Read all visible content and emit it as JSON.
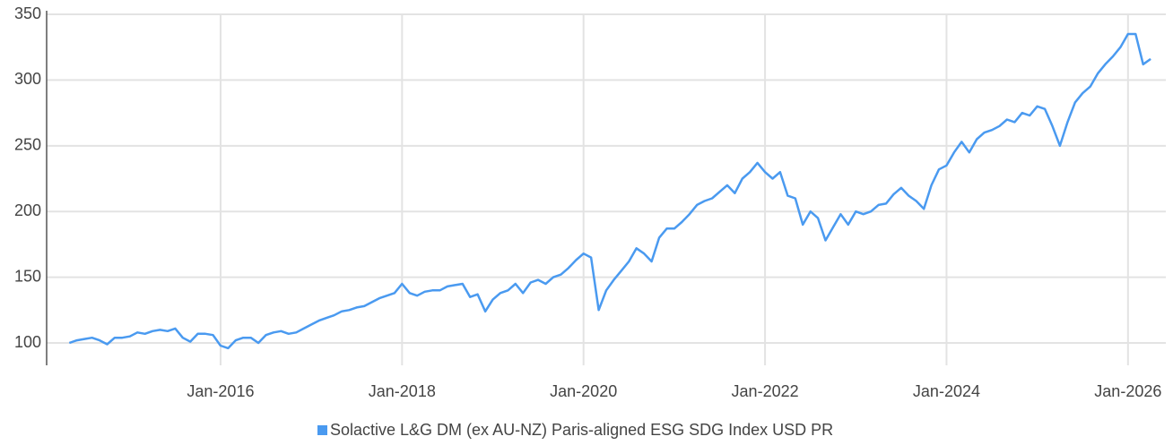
{
  "chart_data": {
    "type": "line",
    "x": [
      "2014-05",
      "2014-06",
      "2014-07",
      "2014-08",
      "2014-09",
      "2014-10",
      "2014-11",
      "2014-12",
      "2015-01",
      "2015-02",
      "2015-03",
      "2015-04",
      "2015-05",
      "2015-06",
      "2015-07",
      "2015-08",
      "2015-09",
      "2015-10",
      "2015-11",
      "2015-12",
      "2016-01",
      "2016-02",
      "2016-03",
      "2016-04",
      "2016-05",
      "2016-06",
      "2016-07",
      "2016-08",
      "2016-09",
      "2016-10",
      "2016-11",
      "2016-12",
      "2017-01",
      "2017-02",
      "2017-03",
      "2017-04",
      "2017-05",
      "2017-06",
      "2017-07",
      "2017-08",
      "2017-09",
      "2017-10",
      "2017-11",
      "2017-12",
      "2018-01",
      "2018-02",
      "2018-03",
      "2018-04",
      "2018-05",
      "2018-06",
      "2018-07",
      "2018-08",
      "2018-09",
      "2018-10",
      "2018-11",
      "2018-12",
      "2019-01",
      "2019-02",
      "2019-03",
      "2019-04",
      "2019-05",
      "2019-06",
      "2019-07",
      "2019-08",
      "2019-09",
      "2019-10",
      "2019-11",
      "2019-12",
      "2020-01",
      "2020-02",
      "2020-03",
      "2020-04",
      "2020-05",
      "2020-06",
      "2020-07",
      "2020-08",
      "2020-09",
      "2020-10",
      "2020-11",
      "2020-12",
      "2021-01",
      "2021-02",
      "2021-03",
      "2021-04",
      "2021-05",
      "2021-06",
      "2021-07",
      "2021-08",
      "2021-09",
      "2021-10",
      "2021-11",
      "2021-12",
      "2022-01",
      "2022-02",
      "2022-03",
      "2022-04",
      "2022-05",
      "2022-06",
      "2022-07",
      "2022-08",
      "2022-09",
      "2022-10",
      "2022-11",
      "2022-12",
      "2023-01",
      "2023-02",
      "2023-03",
      "2023-04",
      "2023-05",
      "2023-06",
      "2023-07",
      "2023-08",
      "2023-09",
      "2023-10",
      "2023-11",
      "2023-12",
      "2024-01",
      "2024-02",
      "2024-03",
      "2024-04",
      "2024-05",
      "2024-06",
      "2024-07",
      "2024-08",
      "2024-09",
      "2024-10",
      "2024-11",
      "2024-12",
      "2025-01",
      "2025-02",
      "2025-03",
      "2025-04",
      "2025-05",
      "2025-06",
      "2025-07",
      "2025-08",
      "2025-09",
      "2025-10",
      "2025-11",
      "2025-12",
      "2026-01",
      "2026-02",
      "2026-03",
      "2026-04"
    ],
    "series": [
      {
        "name": "Solactive L&G DM (ex AU-NZ) Paris-aligned ESG SDG Index USD PR",
        "color": "#4a9af0",
        "values": [
          100,
          102,
          103,
          104,
          102,
          99,
          104,
          104,
          105,
          108,
          107,
          109,
          110,
          109,
          111,
          104,
          101,
          107,
          107,
          106,
          98,
          96,
          102,
          104,
          104,
          100,
          106,
          108,
          109,
          107,
          108,
          111,
          114,
          117,
          119,
          121,
          124,
          125,
          127,
          128,
          131,
          134,
          136,
          138,
          145,
          138,
          136,
          139,
          140,
          140,
          143,
          144,
          145,
          135,
          137,
          124,
          133,
          138,
          140,
          145,
          138,
          146,
          148,
          145,
          150,
          152,
          157,
          163,
          168,
          165,
          125,
          140,
          148,
          155,
          162,
          172,
          168,
          162,
          180,
          187,
          187,
          192,
          198,
          205,
          208,
          210,
          215,
          220,
          214,
          225,
          230,
          237,
          230,
          225,
          230,
          212,
          210,
          190,
          200,
          195,
          178,
          188,
          198,
          190,
          200,
          198,
          200,
          205,
          206,
          213,
          218,
          212,
          208,
          202,
          220,
          232,
          235,
          245,
          253,
          245,
          255,
          260,
          262,
          265,
          270,
          268,
          275,
          273,
          280,
          278,
          265,
          250,
          268,
          283,
          290,
          295,
          305,
          312,
          318,
          325,
          335,
          335,
          312,
          316
        ]
      }
    ],
    "xlim": [
      "2014-02",
      "2026-06"
    ],
    "xticks": [
      {
        "value": "2016-01",
        "label": "Jan-2016"
      },
      {
        "value": "2018-01",
        "label": "Jan-2018"
      },
      {
        "value": "2020-01",
        "label": "Jan-2020"
      },
      {
        "value": "2022-01",
        "label": "Jan-2022"
      },
      {
        "value": "2024-01",
        "label": "Jan-2024"
      },
      {
        "value": "2026-01",
        "label": "Jan-2026"
      }
    ],
    "ylim": [
      83,
      350
    ],
    "yticks": [
      100,
      150,
      200,
      250,
      300,
      350
    ],
    "grid": true
  }
}
